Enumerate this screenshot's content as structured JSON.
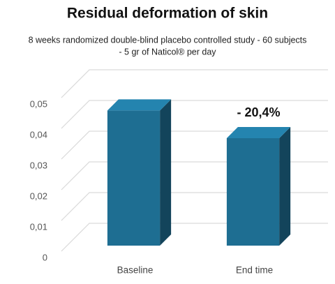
{
  "chart_data": {
    "type": "bar3d",
    "title": "Residual deformation of skin",
    "subtitle": [
      "8 weeks randomized double-blind placebo controlled study - 60 subjects",
      "- 5 gr of Naticol® per day"
    ],
    "categories": [
      "Baseline",
      "End time"
    ],
    "values": [
      0.044,
      0.035
    ],
    "color": "#1e6e92",
    "ylim": [
      0,
      0.05
    ],
    "yticks": [
      0,
      {
        "value": 0.01,
        "label": "0,01"
      },
      {
        "value": 0.02,
        "label": "0,02"
      },
      {
        "value": 0.03,
        "label": "0,03"
      },
      {
        "value": 0.04,
        "label": "0,04"
      },
      {
        "value": 0.05,
        "label": "0,05"
      }
    ],
    "grid": true,
    "annotations": [
      {
        "text": "- 20,4%",
        "category": 1
      }
    ]
  }
}
